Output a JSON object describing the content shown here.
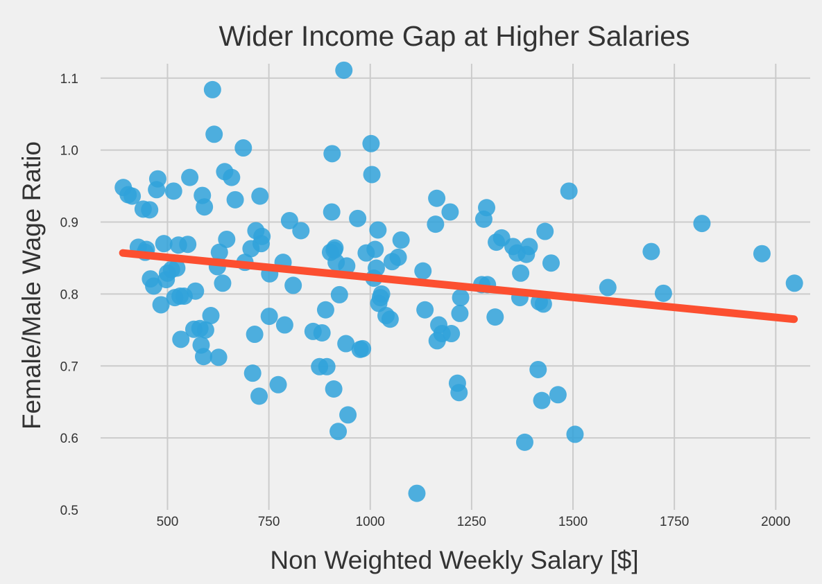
{
  "chart_data": {
    "type": "scatter",
    "title": "Wider Income Gap at Higher Salaries",
    "xlabel": "Non Weighted Weekly Salary [$]",
    "ylabel": "Female/Male Wage Ratio",
    "xlim": [
      335,
      2085
    ],
    "ylim": [
      0.5,
      1.12
    ],
    "grid": true,
    "x_ticks": [
      500,
      750,
      1000,
      1250,
      1500,
      1750,
      2000
    ],
    "y_ticks": [
      0.5,
      0.6,
      0.7,
      0.8,
      0.9,
      1.0,
      1.1
    ],
    "x_tick_labels": [
      "500",
      "750",
      "1000",
      "1250",
      "1500",
      "1750",
      "2000"
    ],
    "y_tick_labels": [
      "0.5",
      "0.6",
      "0.7",
      "0.8",
      "0.9",
      "1.0",
      "1.1"
    ],
    "colors": {
      "background": "#f0f0f0",
      "grid": "#cbcbcb",
      "points": "#30a2da",
      "trend": "#fc4f30",
      "text": "#333333"
    },
    "points": [
      [
        391,
        0.948
      ],
      [
        403,
        0.938
      ],
      [
        413,
        0.936
      ],
      [
        428,
        0.865
      ],
      [
        440,
        0.918
      ],
      [
        445,
        0.858
      ],
      [
        448,
        0.862
      ],
      [
        456,
        0.917
      ],
      [
        458,
        0.821
      ],
      [
        466,
        0.811
      ],
      [
        473,
        0.945
      ],
      [
        476,
        0.96
      ],
      [
        484,
        0.785
      ],
      [
        491,
        0.87
      ],
      [
        497,
        0.82
      ],
      [
        500,
        0.829
      ],
      [
        510,
        0.834
      ],
      [
        515,
        0.943
      ],
      [
        518,
        0.795
      ],
      [
        523,
        0.836
      ],
      [
        527,
        0.868
      ],
      [
        531,
        0.797
      ],
      [
        533,
        0.737
      ],
      [
        541,
        0.797
      ],
      [
        550,
        0.869
      ],
      [
        555,
        0.962
      ],
      [
        565,
        0.751
      ],
      [
        569,
        0.804
      ],
      [
        580,
        0.752
      ],
      [
        583,
        0.729
      ],
      [
        586,
        0.937
      ],
      [
        589,
        0.713
      ],
      [
        591,
        0.921
      ],
      [
        594,
        0.75
      ],
      [
        607,
        0.77
      ],
      [
        611,
        1.084
      ],
      [
        615,
        1.022
      ],
      [
        623,
        0.838
      ],
      [
        626,
        0.712
      ],
      [
        628,
        0.858
      ],
      [
        636,
        0.815
      ],
      [
        641,
        0.97
      ],
      [
        646,
        0.876
      ],
      [
        658,
        0.962
      ],
      [
        667,
        0.931
      ],
      [
        687,
        1.003
      ],
      [
        691,
        0.844
      ],
      [
        706,
        0.863
      ],
      [
        710,
        0.69
      ],
      [
        715,
        0.744
      ],
      [
        718,
        0.888
      ],
      [
        726,
        0.658
      ],
      [
        728,
        0.936
      ],
      [
        731,
        0.87
      ],
      [
        733,
        0.88
      ],
      [
        751,
        0.769
      ],
      [
        752,
        0.828
      ],
      [
        773,
        0.674
      ],
      [
        785,
        0.844
      ],
      [
        789,
        0.757
      ],
      [
        801,
        0.902
      ],
      [
        810,
        0.812
      ],
      [
        829,
        0.888
      ],
      [
        859,
        0.748
      ],
      [
        875,
        0.699
      ],
      [
        881,
        0.746
      ],
      [
        890,
        0.778
      ],
      [
        893,
        0.699
      ],
      [
        902,
        0.858
      ],
      [
        905,
        0.914
      ],
      [
        906,
        0.995
      ],
      [
        910,
        0.668
      ],
      [
        911,
        0.861
      ],
      [
        913,
        0.864
      ],
      [
        916,
        0.844
      ],
      [
        921,
        0.609
      ],
      [
        924,
        0.799
      ],
      [
        935,
        1.111
      ],
      [
        940,
        0.731
      ],
      [
        942,
        0.839
      ],
      [
        945,
        0.632
      ],
      [
        969,
        0.905
      ],
      [
        975,
        0.723
      ],
      [
        981,
        0.724
      ],
      [
        990,
        0.857
      ],
      [
        1002,
        1.009
      ],
      [
        1004,
        0.966
      ],
      [
        1009,
        0.822
      ],
      [
        1012,
        0.862
      ],
      [
        1015,
        0.836
      ],
      [
        1019,
        0.889
      ],
      [
        1021,
        0.787
      ],
      [
        1025,
        0.795
      ],
      [
        1028,
        0.8
      ],
      [
        1039,
        0.77
      ],
      [
        1049,
        0.765
      ],
      [
        1054,
        0.845
      ],
      [
        1069,
        0.851
      ],
      [
        1076,
        0.875
      ],
      [
        1115,
        0.523
      ],
      [
        1130,
        0.832
      ],
      [
        1135,
        0.778
      ],
      [
        1161,
        0.897
      ],
      [
        1164,
        0.933
      ],
      [
        1165,
        0.735
      ],
      [
        1169,
        0.757
      ],
      [
        1177,
        0.745
      ],
      [
        1197,
        0.914
      ],
      [
        1200,
        0.745
      ],
      [
        1215,
        0.676
      ],
      [
        1219,
        0.663
      ],
      [
        1221,
        0.773
      ],
      [
        1223,
        0.795
      ],
      [
        1275,
        0.813
      ],
      [
        1280,
        0.904
      ],
      [
        1287,
        0.92
      ],
      [
        1289,
        0.813
      ],
      [
        1308,
        0.768
      ],
      [
        1311,
        0.872
      ],
      [
        1324,
        0.878
      ],
      [
        1352,
        0.866
      ],
      [
        1362,
        0.857
      ],
      [
        1369,
        0.795
      ],
      [
        1371,
        0.829
      ],
      [
        1381,
        0.594
      ],
      [
        1385,
        0.855
      ],
      [
        1392,
        0.866
      ],
      [
        1414,
        0.695
      ],
      [
        1417,
        0.789
      ],
      [
        1423,
        0.652
      ],
      [
        1427,
        0.786
      ],
      [
        1431,
        0.887
      ],
      [
        1446,
        0.843
      ],
      [
        1463,
        0.66
      ],
      [
        1490,
        0.943
      ],
      [
        1505,
        0.605
      ],
      [
        1586,
        0.809
      ],
      [
        1693,
        0.859
      ],
      [
        1723,
        0.801
      ],
      [
        1818,
        0.898
      ],
      [
        1966,
        0.856
      ],
      [
        2046,
        0.815
      ]
    ],
    "trend_line": {
      "x": [
        390,
        2045
      ],
      "y": [
        0.857,
        0.765
      ]
    }
  }
}
